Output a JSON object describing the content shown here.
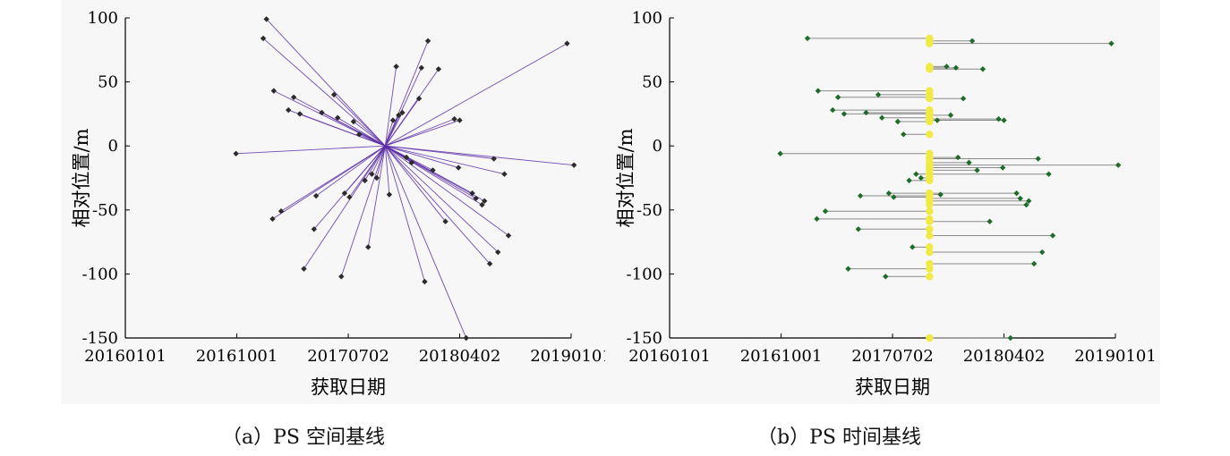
{
  "figure": {
    "caption_a": "（a）PS 空间基线",
    "caption_b": "（b）PS 时间基线"
  },
  "colors": {
    "background": "#f7f7f7",
    "axis": "#000000",
    "marker": "#2b2b2b",
    "spatial_line": "#5a2ea6",
    "temporal_marker": "#1f6b2a",
    "temporal_line": "#8a8a8a",
    "master_highlight": "#f0ea45"
  },
  "chart_data": [
    {
      "type": "scatter",
      "title": "",
      "xlabel": "获取日期",
      "ylabel": "相对位置/m",
      "x_ticks": [
        "20160101",
        "20161001",
        "20170702",
        "20180402",
        "20190101"
      ],
      "y_ticks": [
        100,
        50,
        0,
        -50,
        -100,
        -150
      ],
      "xlim": [
        "20160101",
        "20190101"
      ],
      "ylim": [
        -150,
        100
      ],
      "master": {
        "date": "20171001",
        "position": 0
      },
      "points": [
        {
          "date": "20160929",
          "position": -6
        },
        {
          "date": "20161205",
          "position": 84
        },
        {
          "date": "20161213",
          "position": 99
        },
        {
          "date": "20161231",
          "position": 43
        },
        {
          "date": "20161228",
          "position": -57
        },
        {
          "date": "20170118",
          "position": -51
        },
        {
          "date": "20170205",
          "position": 28
        },
        {
          "date": "20170218",
          "position": 38
        },
        {
          "date": "20170305",
          "position": 25
        },
        {
          "date": "20170315",
          "position": -96
        },
        {
          "date": "20170409",
          "position": -65
        },
        {
          "date": "20170414",
          "position": -39
        },
        {
          "date": "20170428",
          "position": 26
        },
        {
          "date": "20170528",
          "position": 40
        },
        {
          "date": "20170606",
          "position": 22
        },
        {
          "date": "20170615",
          "position": -102
        },
        {
          "date": "20170623",
          "position": -37
        },
        {
          "date": "20170705",
          "position": -40
        },
        {
          "date": "20170715",
          "position": 19
        },
        {
          "date": "20170729",
          "position": 9
        },
        {
          "date": "20170812",
          "position": -27
        },
        {
          "date": "20170820",
          "position": -79
        },
        {
          "date": "20170829",
          "position": -22
        },
        {
          "date": "20170910",
          "position": -25
        },
        {
          "date": "20171011",
          "position": -38
        },
        {
          "date": "20171020",
          "position": 20
        },
        {
          "date": "20171028",
          "position": 62
        },
        {
          "date": "20171103",
          "position": 24
        },
        {
          "date": "20171112",
          "position": 26
        },
        {
          "date": "20171122",
          "position": -9
        },
        {
          "date": "20171205",
          "position": -13
        },
        {
          "date": "20171223",
          "position": 37
        },
        {
          "date": "20171229",
          "position": 61
        },
        {
          "date": "20180106",
          "position": -106
        },
        {
          "date": "20180114",
          "position": 82
        },
        {
          "date": "20180126",
          "position": -19
        },
        {
          "date": "20180209",
          "position": 60
        },
        {
          "date": "20180226",
          "position": -59
        },
        {
          "date": "20180320",
          "position": 21
        },
        {
          "date": "20180330",
          "position": -17
        },
        {
          "date": "20180402",
          "position": 20
        },
        {
          "date": "20180418",
          "position": -150
        },
        {
          "date": "20180503",
          "position": -37
        },
        {
          "date": "20180512",
          "position": -41
        },
        {
          "date": "20180527",
          "position": -46
        },
        {
          "date": "20180602",
          "position": -43
        },
        {
          "date": "20180615",
          "position": -92
        },
        {
          "date": "20180625",
          "position": -10
        },
        {
          "date": "20180705",
          "position": -83
        },
        {
          "date": "20180721",
          "position": -22
        },
        {
          "date": "20180731",
          "position": -70
        },
        {
          "date": "20181222",
          "position": 80
        },
        {
          "date": "20190108",
          "position": -15
        }
      ]
    },
    {
      "type": "scatter",
      "title": "",
      "xlabel": "获取日期",
      "ylabel": "相对位置/m",
      "x_ticks": [
        "20160101",
        "20161001",
        "20170702",
        "20180402",
        "20190101"
      ],
      "y_ticks": [
        100,
        50,
        0,
        -50,
        -100,
        -150
      ],
      "xlim": [
        "20160101",
        "20190101"
      ],
      "ylim": [
        -150,
        100
      ],
      "master": {
        "date": "20171001"
      },
      "points": [
        {
          "date": "20160929",
          "position": -6
        },
        {
          "date": "20161205",
          "position": 84
        },
        {
          "date": "20161231",
          "position": 43
        },
        {
          "date": "20161228",
          "position": -57
        },
        {
          "date": "20170118",
          "position": -51
        },
        {
          "date": "20170205",
          "position": 28
        },
        {
          "date": "20170218",
          "position": 38
        },
        {
          "date": "20170305",
          "position": 25
        },
        {
          "date": "20170315",
          "position": -96
        },
        {
          "date": "20170409",
          "position": -65
        },
        {
          "date": "20170414",
          "position": -39
        },
        {
          "date": "20170428",
          "position": 26
        },
        {
          "date": "20170528",
          "position": 40
        },
        {
          "date": "20170606",
          "position": 22
        },
        {
          "date": "20170615",
          "position": -102
        },
        {
          "date": "20170623",
          "position": -37
        },
        {
          "date": "20170705",
          "position": -40
        },
        {
          "date": "20170715",
          "position": 19
        },
        {
          "date": "20170729",
          "position": 9
        },
        {
          "date": "20170812",
          "position": -27
        },
        {
          "date": "20170820",
          "position": -79
        },
        {
          "date": "20170829",
          "position": -22
        },
        {
          "date": "20170910",
          "position": -25
        },
        {
          "date": "20171020",
          "position": 20
        },
        {
          "date": "20171028",
          "position": -38
        },
        {
          "date": "20171112",
          "position": 62
        },
        {
          "date": "20171122",
          "position": 24
        },
        {
          "date": "20171205",
          "position": 61
        },
        {
          "date": "20171210",
          "position": -9
        },
        {
          "date": "20171223",
          "position": 37
        },
        {
          "date": "20180106",
          "position": -13
        },
        {
          "date": "20180114",
          "position": 82
        },
        {
          "date": "20180126",
          "position": -19
        },
        {
          "date": "20180209",
          "position": 60
        },
        {
          "date": "20180226",
          "position": -59
        },
        {
          "date": "20180320",
          "position": 21
        },
        {
          "date": "20180330",
          "position": -17
        },
        {
          "date": "20180402",
          "position": 20
        },
        {
          "date": "20180418",
          "position": -150
        },
        {
          "date": "20180503",
          "position": -37
        },
        {
          "date": "20180512",
          "position": -41
        },
        {
          "date": "20180527",
          "position": -46
        },
        {
          "date": "20180602",
          "position": -43
        },
        {
          "date": "20180615",
          "position": -92
        },
        {
          "date": "20180625",
          "position": -10
        },
        {
          "date": "20180705",
          "position": -83
        },
        {
          "date": "20180721",
          "position": -22
        },
        {
          "date": "20180731",
          "position": -70
        },
        {
          "date": "20181222",
          "position": 80
        },
        {
          "date": "20190108",
          "position": -15
        }
      ]
    }
  ]
}
